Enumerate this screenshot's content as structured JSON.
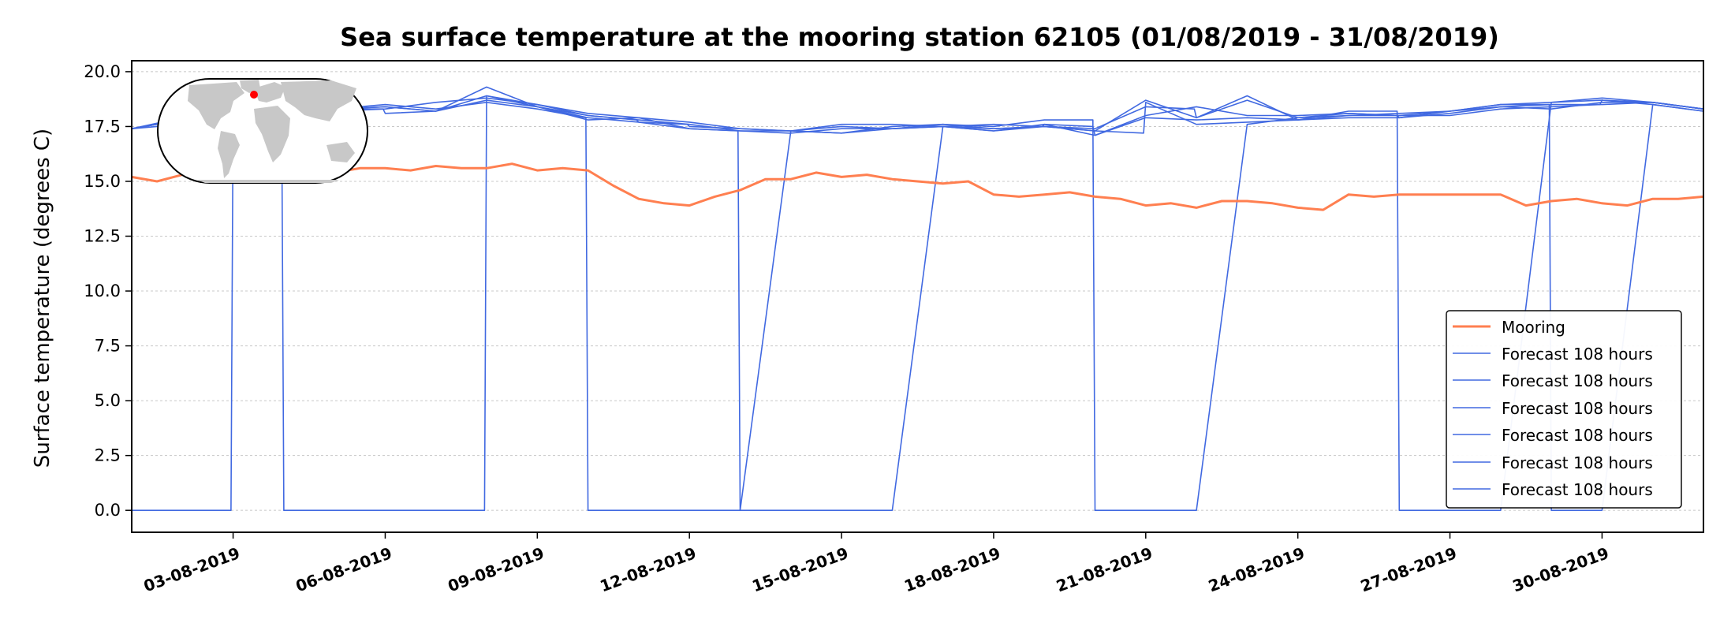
{
  "chart_data": {
    "type": "line",
    "title": "Sea surface temperature at the mooring station 62105 (01/08/2019 - 31/08/2019)",
    "xlabel": "",
    "ylabel": "Surface temperature (degrees C)",
    "xlim": [
      "2019-08-01",
      "2019-09-01"
    ],
    "ylim": [
      -1,
      20.5
    ],
    "y_ticks": [
      "0.0",
      "2.5",
      "5.0",
      "7.5",
      "10.0",
      "12.5",
      "15.0",
      "17.5",
      "20.0"
    ],
    "x_ticks": [
      "03-08-2019",
      "06-08-2019",
      "09-08-2019",
      "12-08-2019",
      "15-08-2019",
      "18-08-2019",
      "21-08-2019",
      "24-08-2019",
      "27-08-2019",
      "30-08-2019"
    ],
    "grid": "horizontal",
    "legend_position": "lower right",
    "colors": {
      "mooring": "#ff7f50",
      "forecast": "#4169e1"
    },
    "inset_map": {
      "shows": "world map",
      "marker_color": "#ff0000"
    },
    "series": [
      {
        "name": "Mooring",
        "x": [
          "2019-08-01 00:00",
          "2019-08-01 12:00",
          "2019-08-02 00:00",
          "2019-08-02 12:00",
          "2019-08-03 00:00",
          "2019-08-03 12:00",
          "2019-08-04 00:00",
          "2019-08-04 12:00",
          "2019-08-05 00:00",
          "2019-08-05 12:00",
          "2019-08-06 00:00",
          "2019-08-06 12:00",
          "2019-08-07 00:00",
          "2019-08-07 12:00",
          "2019-08-08 00:00",
          "2019-08-08 12:00",
          "2019-08-09 00:00",
          "2019-08-09 12:00",
          "2019-08-10 00:00",
          "2019-08-10 12:00",
          "2019-08-11 00:00",
          "2019-08-11 12:00",
          "2019-08-12 00:00",
          "2019-08-12 12:00",
          "2019-08-13 00:00",
          "2019-08-13 12:00",
          "2019-08-14 00:00",
          "2019-08-14 12:00",
          "2019-08-15 00:00",
          "2019-08-15 12:00",
          "2019-08-16 00:00",
          "2019-08-16 12:00",
          "2019-08-17 00:00",
          "2019-08-17 12:00",
          "2019-08-18 00:00",
          "2019-08-18 12:00",
          "2019-08-19 00:00",
          "2019-08-19 12:00",
          "2019-08-20 00:00",
          "2019-08-20 12:00",
          "2019-08-21 00:00",
          "2019-08-21 12:00",
          "2019-08-22 00:00",
          "2019-08-22 12:00",
          "2019-08-23 00:00",
          "2019-08-23 12:00",
          "2019-08-24 00:00",
          "2019-08-24 12:00",
          "2019-08-25 00:00",
          "2019-08-25 12:00",
          "2019-08-26 00:00",
          "2019-08-26 12:00",
          "2019-08-27 00:00",
          "2019-08-27 12:00",
          "2019-08-28 00:00",
          "2019-08-28 12:00",
          "2019-08-29 00:00",
          "2019-08-29 12:00",
          "2019-08-30 00:00",
          "2019-08-30 12:00",
          "2019-08-31 00:00",
          "2019-08-31 12:00",
          "2019-09-01 00:00"
        ],
        "y": [
          15.2,
          15.0,
          15.3,
          15.5,
          15.4,
          15.5,
          15.5,
          15.4,
          15.4,
          15.6,
          15.6,
          15.5,
          15.7,
          15.6,
          15.6,
          15.8,
          15.5,
          15.6,
          15.5,
          14.8,
          14.2,
          14.0,
          13.9,
          14.3,
          14.6,
          15.1,
          15.1,
          15.4,
          15.2,
          15.3,
          15.1,
          15.0,
          14.9,
          15.0,
          14.4,
          14.3,
          14.4,
          14.5,
          14.3,
          14.2,
          13.9,
          14.0,
          13.8,
          14.1,
          14.1,
          14.0,
          13.8,
          13.7,
          14.4,
          14.3,
          14.4,
          14.4,
          14.4,
          14.4,
          14.4,
          13.9,
          14.1,
          14.2,
          14.0,
          13.9,
          14.2,
          14.2,
          14.3
        ]
      },
      {
        "name": "Forecast 108 hours",
        "x": [
          "2019-08-01 00:00",
          "2019-08-02 00:00",
          "2019-08-02 23:00",
          "2019-08-03 00:00",
          "2019-08-04 00:00",
          "2019-08-04 23:00",
          "2019-08-05 00:00",
          "2019-08-06 00:00",
          "2019-08-07 00:00",
          "2019-08-08 00:00",
          "2019-08-09 00:00",
          "2019-08-10 00:00",
          "2019-08-10 23:00",
          "2019-08-11 00:00",
          "2019-08-12 00:00",
          "2019-08-13 00:00",
          "2019-08-13 23:00",
          "2019-08-14 00:00",
          "2019-08-15 00:00",
          "2019-08-16 00:00",
          "2019-08-17 00:00",
          "2019-08-18 00:00",
          "2019-08-19 00:00",
          "2019-08-19 23:00",
          "2019-08-20 00:00",
          "2019-08-21 00:00",
          "2019-08-22 00:00",
          "2019-08-23 00:00",
          "2019-08-24 00:00",
          "2019-08-25 00:00",
          "2019-08-25 23:00",
          "2019-08-26 00:00",
          "2019-08-27 00:00",
          "2019-08-28 00:00",
          "2019-08-29 00:00",
          "2019-08-30 00:00",
          "2019-08-30 23:00",
          "2019-08-31 00:00",
          "2019-09-01 00:00"
        ],
        "y": [
          0.0,
          0.0,
          0.0,
          18.2,
          18.3,
          18.3,
          18.2,
          18.3,
          18.6,
          18.8,
          18.5,
          18.0,
          17.8,
          17.7,
          17.4,
          17.3,
          17.2,
          17.2,
          17.4,
          17.4,
          17.5,
          17.3,
          17.6,
          17.5,
          17.1,
          17.9,
          17.8,
          17.9,
          17.8,
          18.0,
          18.0,
          17.9,
          18.2,
          18.4,
          18.3,
          18.6,
          18.6,
          18.6,
          18.3
        ]
      },
      {
        "name": "Forecast 108 hours",
        "x": [
          "2019-08-01 00:00",
          "2019-08-02 00:00",
          "2019-08-03 00:00",
          "2019-08-03 23:00",
          "2019-08-04 00:00",
          "2019-08-05 00:00",
          "2019-08-06 00:00",
          "2019-08-07 00:00",
          "2019-08-07 23:00",
          "2019-08-08 00:00",
          "2019-08-09 00:00",
          "2019-08-10 00:00",
          "2019-08-11 00:00",
          "2019-08-11 23:00",
          "2019-08-12 00:00",
          "2019-08-13 00:00",
          "2019-08-14 00:00",
          "2019-08-15 00:00",
          "2019-08-16 00:00",
          "2019-08-17 00:00",
          "2019-08-18 00:00",
          "2019-08-18 23:00",
          "2019-08-19 00:00",
          "2019-08-20 00:00",
          "2019-08-21 00:00",
          "2019-08-22 00:00",
          "2019-08-23 00:00",
          "2019-08-24 00:00",
          "2019-08-25 00:00",
          "2019-08-26 00:00",
          "2019-08-27 00:00",
          "2019-08-28 00:00",
          "2019-08-29 00:00",
          "2019-08-29 23:00",
          "2019-08-30 00:00",
          "2019-08-31 00:00",
          "2019-09-01 00:00"
        ],
        "y": [
          17.4,
          17.6,
          18.2,
          18.2,
          0.0,
          0.0,
          0.0,
          0.0,
          0.0,
          18.9,
          18.4,
          17.9,
          17.7,
          17.6,
          17.5,
          17.4,
          17.3,
          17.5,
          17.4,
          17.6,
          17.4,
          17.5,
          17.6,
          17.1,
          18.0,
          18.4,
          18.0,
          18.0,
          18.1,
          18.0,
          18.0,
          18.3,
          18.4,
          18.5,
          18.7,
          18.6,
          18.3
        ]
      },
      {
        "name": "Forecast 108 hours",
        "x": [
          "2019-08-01 00:00",
          "2019-08-02 00:00",
          "2019-08-03 00:00",
          "2019-08-04 00:00",
          "2019-08-05 00:00",
          "2019-08-05 23:00",
          "2019-08-06 00:00",
          "2019-08-07 00:00",
          "2019-08-08 00:00",
          "2019-08-09 00:00",
          "2019-08-10 00:00",
          "2019-08-11 00:00",
          "2019-08-12 00:00",
          "2019-08-12 23:00",
          "2019-08-13 00:00",
          "2019-08-14 00:00",
          "2019-08-15 00:00",
          "2019-08-16 00:00",
          "2019-08-17 00:00",
          "2019-08-18 00:00",
          "2019-08-19 00:00",
          "2019-08-20 00:00",
          "2019-08-20 23:00",
          "2019-08-21 00:00",
          "2019-08-22 00:00",
          "2019-08-23 00:00",
          "2019-08-24 00:00",
          "2019-08-25 00:00",
          "2019-08-26 00:00",
          "2019-08-27 00:00",
          "2019-08-28 00:00",
          "2019-08-29 00:00",
          "2019-08-30 00:00",
          "2019-08-31 00:00",
          "2019-09-01 00:00"
        ],
        "y": [
          17.4,
          17.9,
          18.2,
          18.3,
          18.3,
          18.3,
          18.1,
          18.2,
          19.3,
          18.4,
          17.8,
          17.9,
          17.4,
          17.3,
          0.0,
          0.0,
          0.0,
          0.0,
          17.5,
          17.3,
          17.5,
          17.3,
          17.2,
          18.6,
          17.6,
          17.7,
          17.8,
          17.9,
          17.9,
          18.1,
          18.4,
          18.5,
          18.5,
          18.6,
          18.3
        ]
      },
      {
        "name": "Forecast 108 hours",
        "x": [
          "2019-08-01 00:00",
          "2019-08-02 00:00",
          "2019-08-03 00:00",
          "2019-08-04 00:00",
          "2019-08-05 00:00",
          "2019-08-06 00:00",
          "2019-08-07 00:00",
          "2019-08-08 00:00",
          "2019-08-09 00:00",
          "2019-08-10 00:00",
          "2019-08-11 00:00",
          "2019-08-12 00:00",
          "2019-08-13 00:00",
          "2019-08-14 00:00",
          "2019-08-15 00:00",
          "2019-08-16 00:00",
          "2019-08-17 00:00",
          "2019-08-18 00:00",
          "2019-08-19 00:00",
          "2019-08-20 00:00",
          "2019-08-21 00:00",
          "2019-08-21 23:00",
          "2019-08-22 00:00",
          "2019-08-23 00:00",
          "2019-08-24 00:00",
          "2019-08-25 00:00",
          "2019-08-25 23:00",
          "2019-08-26 00:00",
          "2019-08-27 00:00",
          "2019-08-28 00:00",
          "2019-08-29 00:00",
          "2019-08-30 00:00",
          "2019-08-31 00:00",
          "2019-09-01 00:00"
        ],
        "y": [
          17.4,
          17.8,
          18.1,
          18.2,
          18.3,
          18.4,
          18.2,
          18.7,
          18.4,
          18.0,
          17.8,
          17.6,
          17.3,
          17.3,
          17.2,
          17.4,
          17.5,
          17.4,
          17.5,
          17.4,
          18.4,
          18.3,
          17.9,
          18.9,
          17.8,
          18.2,
          18.2,
          0.0,
          0.0,
          0.0,
          18.6,
          18.7,
          18.5,
          18.2
        ]
      },
      {
        "name": "Forecast 108 hours",
        "x": [
          "2019-08-01 00:00",
          "2019-08-02 00:00",
          "2019-08-03 00:00",
          "2019-08-04 00:00",
          "2019-08-05 00:00",
          "2019-08-06 00:00",
          "2019-08-07 00:00",
          "2019-08-08 00:00",
          "2019-08-09 00:00",
          "2019-08-10 00:00",
          "2019-08-11 00:00",
          "2019-08-12 00:00",
          "2019-08-13 00:00",
          "2019-08-14 00:00",
          "2019-08-15 00:00",
          "2019-08-16 00:00",
          "2019-08-17 00:00",
          "2019-08-18 00:00",
          "2019-08-19 00:00",
          "2019-08-19 23:00",
          "2019-08-20 00:00",
          "2019-08-21 00:00",
          "2019-08-22 00:00",
          "2019-08-23 00:00",
          "2019-08-24 00:00",
          "2019-08-25 00:00",
          "2019-08-26 00:00",
          "2019-08-27 00:00",
          "2019-08-28 00:00",
          "2019-08-29 00:00",
          "2019-08-30 00:00",
          "2019-08-31 00:00",
          "2019-09-01 00:00"
        ],
        "y": [
          17.4,
          17.8,
          18.1,
          18.2,
          18.3,
          18.4,
          18.2,
          18.9,
          18.5,
          18.1,
          17.9,
          17.7,
          17.4,
          17.3,
          17.2,
          17.5,
          17.6,
          17.5,
          17.8,
          17.8,
          0.0,
          0.0,
          0.0,
          17.6,
          17.9,
          18.0,
          18.1,
          18.2,
          18.5,
          18.6,
          18.8,
          18.6,
          18.3
        ]
      },
      {
        "name": "Forecast 108 hours",
        "x": [
          "2019-08-01 00:00",
          "2019-08-02 00:00",
          "2019-08-03 00:00",
          "2019-08-04 00:00",
          "2019-08-05 00:00",
          "2019-08-06 00:00",
          "2019-08-07 00:00",
          "2019-08-08 00:00",
          "2019-08-09 00:00",
          "2019-08-09 23:00",
          "2019-08-10 00:00",
          "2019-08-11 00:00",
          "2019-08-12 00:00",
          "2019-08-13 00:00",
          "2019-08-14 00:00",
          "2019-08-15 00:00",
          "2019-08-16 00:00",
          "2019-08-17 00:00",
          "2019-08-18 00:00",
          "2019-08-19 00:00",
          "2019-08-20 00:00",
          "2019-08-21 00:00",
          "2019-08-22 00:00",
          "2019-08-23 00:00",
          "2019-08-24 00:00",
          "2019-08-25 00:00",
          "2019-08-26 00:00",
          "2019-08-27 00:00",
          "2019-08-28 00:00",
          "2019-08-28 23:00",
          "2019-08-29 00:00",
          "2019-08-30 00:00",
          "2019-08-31 00:00",
          "2019-09-01 00:00"
        ],
        "y": [
          17.4,
          17.8,
          18.1,
          18.2,
          18.3,
          18.5,
          18.3,
          18.6,
          18.3,
          17.9,
          0.0,
          0.0,
          0.0,
          0.0,
          17.3,
          17.6,
          17.6,
          17.5,
          17.6,
          17.5,
          17.3,
          18.7,
          17.9,
          18.7,
          17.9,
          18.1,
          18.0,
          18.2,
          18.5,
          18.5,
          0.0,
          0.0,
          18.5,
          18.2
        ]
      }
    ]
  }
}
